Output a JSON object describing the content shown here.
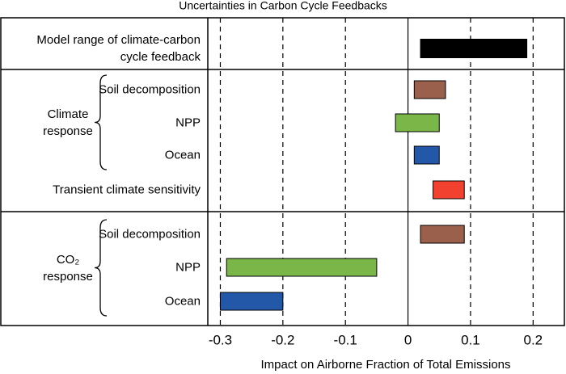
{
  "chart_data": {
    "type": "range_bar",
    "title": "Uncertainties in Carbon Cycle Feedbacks",
    "x_label": "Impact on Airborne Fraction of Total Emissions",
    "xlim": [
      -0.32,
      0.25
    ],
    "xticks": [
      -0.3,
      -0.2,
      -0.1,
      0,
      0.1,
      0.2
    ],
    "grid": "dashed",
    "panels": [
      {
        "groups": [
          {
            "rows": [
              {
                "label": "Model range of climate-carbon cycle feedback",
                "values": [
                  0.02,
                  0.19
                ],
                "color": "#000000"
              }
            ]
          }
        ]
      },
      {
        "groups": [
          {
            "name": "Climate response",
            "rows": [
              {
                "label": "Soil decomposition",
                "values": [
                  0.01,
                  0.06
                ],
                "color": "#9b604b"
              },
              {
                "label": "NPP",
                "values": [
                  -0.02,
                  0.05
                ],
                "color": "#7ab648"
              },
              {
                "label": "Ocean",
                "values": [
                  0.01,
                  0.05
                ],
                "color": "#2358a8"
              }
            ]
          },
          {
            "rows": [
              {
                "label": "Transient climate sensitivity",
                "values": [
                  0.04,
                  0.09
                ],
                "color": "#f2412e"
              }
            ]
          }
        ]
      },
      {
        "groups": [
          {
            "name": "CO₂ response",
            "rows": [
              {
                "label": "Soil decomposition",
                "values": [
                  0.02,
                  0.09
                ],
                "color": "#9b604b"
              },
              {
                "label": "NPP",
                "values": [
                  -0.29,
                  -0.05
                ],
                "color": "#7ab648"
              },
              {
                "label": "Ocean",
                "values": [
                  -0.3,
                  -0.2
                ],
                "color": "#2358a8"
              }
            ]
          }
        ]
      }
    ]
  }
}
